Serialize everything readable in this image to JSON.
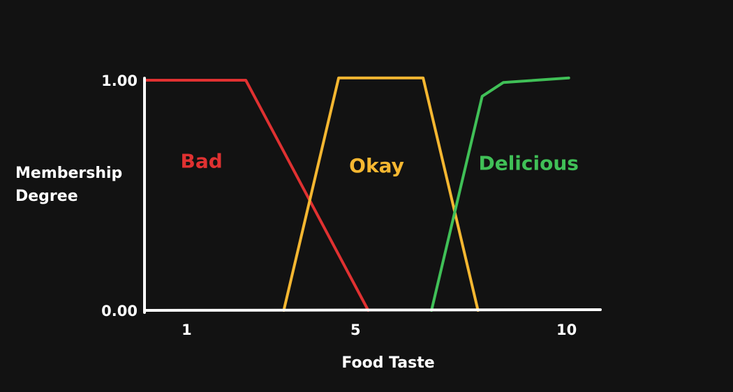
{
  "chart_data": {
    "type": "line",
    "title": "",
    "xlabel": "Food Taste",
    "ylabel_lines": [
      "Membership",
      "Degree"
    ],
    "xlim": [
      0,
      10.8
    ],
    "ylim": [
      0,
      1
    ],
    "x_ticks": [
      {
        "value": 1,
        "label": "1"
      },
      {
        "value": 5,
        "label": "5"
      },
      {
        "value": 10,
        "label": "10"
      }
    ],
    "y_ticks": [
      {
        "value": 0,
        "label": "0.00"
      },
      {
        "value": 1,
        "label": "1.00"
      }
    ],
    "series": [
      {
        "name": "Bad",
        "color": "#e03131",
        "points": [
          [
            0,
            1
          ],
          [
            2.4,
            1
          ],
          [
            5.3,
            0
          ]
        ],
        "label_at": [
          1.35,
          0.62
        ]
      },
      {
        "name": "Okay",
        "color": "#f5b731",
        "points": [
          [
            3.3,
            0
          ],
          [
            4.6,
            1.01
          ],
          [
            6.6,
            1.01
          ],
          [
            7.9,
            0
          ]
        ],
        "label_at": [
          5.5,
          0.6
        ]
      },
      {
        "name": "Delicious",
        "color": "#40c057",
        "points": [
          [
            6.8,
            0
          ],
          [
            8.0,
            0.93
          ],
          [
            8.5,
            0.99
          ],
          [
            10.05,
            1.01
          ]
        ],
        "label_at": [
          9.1,
          0.61
        ]
      }
    ],
    "grid": false,
    "legend": "none",
    "axis_color": "#ffffff",
    "background": "#121212"
  }
}
